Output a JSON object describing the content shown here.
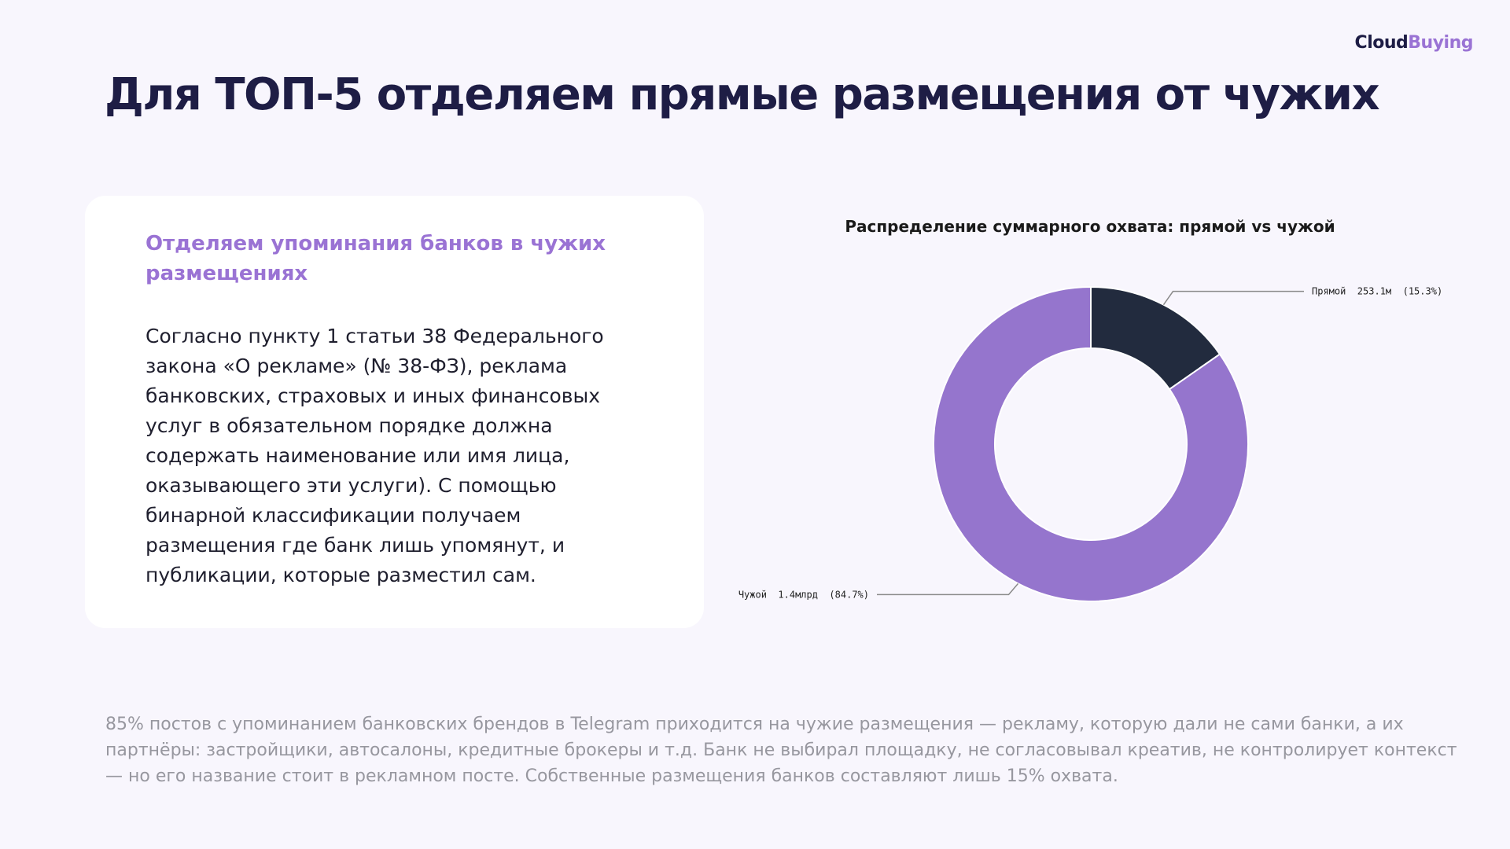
{
  "logo": {
    "part1": "Cloud",
    "part2": "Buying"
  },
  "title": "Для ТОП-5 отделяем прямые размещения от чужих",
  "card": {
    "heading": "Отделяем упоминания банков в чужих размещениях",
    "body": "Согласно пункту 1 статьи 38 Федерального закона «О рекламе» (№ 38-ФЗ), реклама банковских, страховых и иных финансовых услуг в обязательном порядке должна содержать наименование или имя лица, оказывающего эти услуги). С помощью бинарной классификации получаем размещения где банк лишь упомянут, и публикации, которые разместил сам."
  },
  "footer": "85% постов с упоминанием банковских брендов в Telegram приходится на чужие размещения — рекламу, которую дали не сами банки, а их партнёры: застройщики, автосалоны, кредитные брокеры и т.д. Банк не выбирал площадку, не согласовывал креатив, не контролирует контекст — но его название стоит в рекламном посте. Собственные размещения банков составляют лишь 15% охвата.",
  "chart_data": {
    "type": "pie",
    "style": "donut",
    "title": "Распределение суммарного охвата: прямой vs чужой",
    "slices": [
      {
        "name": "Прямой",
        "value": 253100000,
        "percent": 15.3,
        "label": "Прямой  253.1м  (15.3%)",
        "color": "#222b3e"
      },
      {
        "name": "Чужой",
        "value": 1400000000,
        "percent": 84.7,
        "label": "Чужой  1.4млрд  (84.7%)",
        "color": "#9575cd"
      }
    ],
    "start_angle": "top",
    "direction": "clockwise",
    "legend": "none"
  }
}
